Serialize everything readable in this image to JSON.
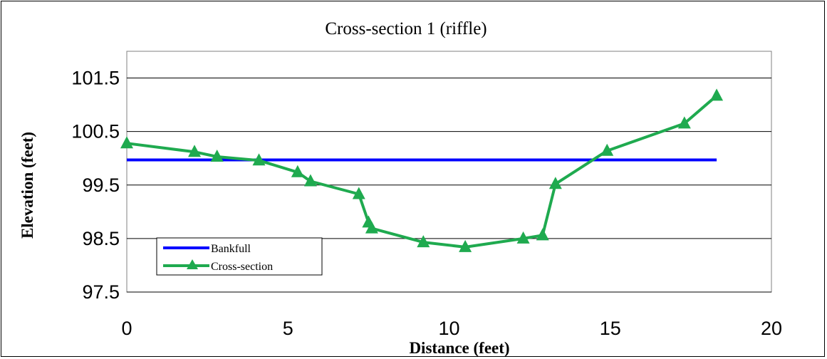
{
  "chart_data": {
    "type": "line",
    "title": "Cross-section 1 (riffle)",
    "xlabel": "Distance (feet)",
    "ylabel": "Elevation (feet)",
    "xlim": [
      0,
      20
    ],
    "ylim": [
      97.5,
      102
    ],
    "x_ticks": [
      0,
      5,
      10,
      15,
      20
    ],
    "y_ticks": [
      97.5,
      98.5,
      99.5,
      100.5,
      101.5
    ],
    "x_tick_labels": [
      "0",
      "5",
      "10",
      "15",
      "20"
    ],
    "y_tick_labels": [
      "97.5",
      "98.5",
      "99.5",
      "100.5",
      "101.5"
    ],
    "grid": "horizontal",
    "legend_position": "bottom-left",
    "series": [
      {
        "name": "Bankfull",
        "color": "#0000ff",
        "marker": "none",
        "x": [
          0,
          18.3
        ],
        "y": [
          99.97,
          99.97
        ]
      },
      {
        "name": "Cross-section",
        "color": "#1faa4f",
        "marker": "triangle",
        "x": [
          0,
          2.1,
          2.8,
          4.1,
          5.3,
          5.7,
          7.2,
          7.5,
          7.6,
          9.2,
          10.5,
          12.3,
          12.9,
          13.3,
          14.9,
          17.3,
          18.3
        ],
        "y": [
          100.28,
          100.12,
          100.03,
          99.96,
          99.74,
          99.57,
          99.33,
          98.8,
          98.69,
          98.43,
          98.34,
          98.5,
          98.56,
          99.52,
          100.14,
          100.65,
          101.17
        ]
      }
    ]
  }
}
